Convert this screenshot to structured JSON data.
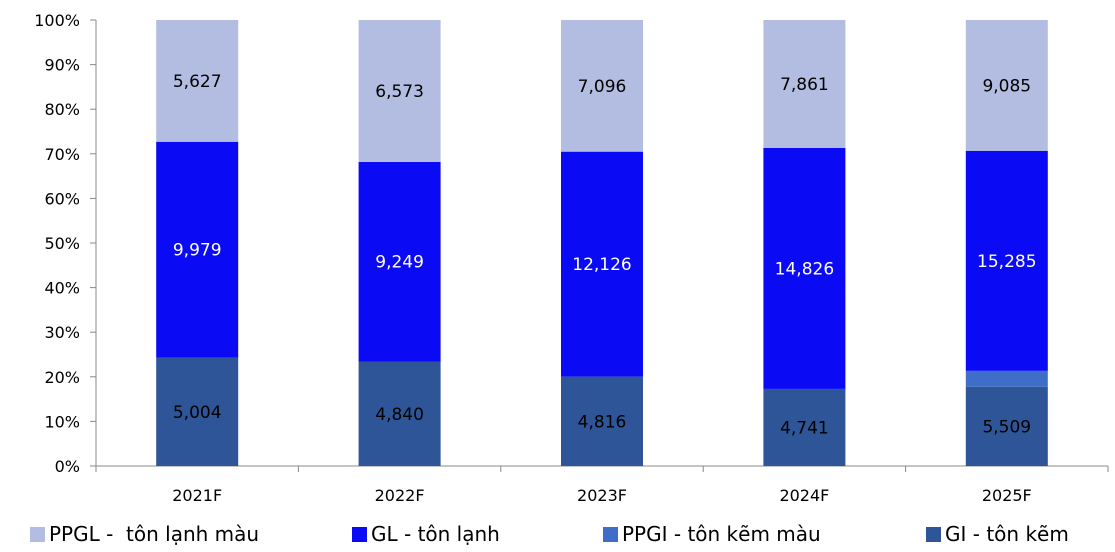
{
  "chart_data": {
    "type": "bar",
    "stacked": "percent",
    "categories": [
      "2021F",
      "2022F",
      "2023F",
      "2024F",
      "2025F"
    ],
    "series": [
      {
        "name": "GI - tôn kẽm",
        "values": [
          5004,
          4840,
          4816,
          4741,
          5509
        ],
        "labels": [
          "5,004",
          "4,840",
          "4,816",
          "4,741",
          "5,509"
        ],
        "color": "#2e5597",
        "label_color": "#000000"
      },
      {
        "name": "PPGI - tôn kẽm màu",
        "values": [
          0,
          0,
          0,
          0,
          1100
        ],
        "labels": [
          "",
          "",
          "",
          "",
          ""
        ],
        "color": "#3e6ec7",
        "label_color": "#000000"
      },
      {
        "name": "GL - tôn lạnh",
        "values": [
          9979,
          9249,
          12126,
          14826,
          15285
        ],
        "labels": [
          "9,979",
          "9,249",
          "12,126",
          "14,826",
          "15,285"
        ],
        "color": "#0a0af5",
        "label_color": "#ffffff"
      },
      {
        "name": "PPGL -  tôn lạnh màu",
        "values": [
          5627,
          6573,
          7096,
          7861,
          9085
        ],
        "labels": [
          "5,627",
          "6,573",
          "7,096",
          "7,861",
          "9,085"
        ],
        "color": "#b3bde1",
        "label_color": "#000000"
      }
    ],
    "yticks": [
      "0%",
      "10%",
      "20%",
      "30%",
      "40%",
      "50%",
      "60%",
      "70%",
      "80%",
      "90%",
      "100%"
    ],
    "ylim": [
      0,
      100
    ],
    "grid": false,
    "legend_position": "bottom",
    "legend_order": [
      "PPGL -  tôn lạnh màu",
      "GL - tôn lạnh",
      "PPGI - tôn kẽm màu",
      "GI - tôn kẽm"
    ]
  }
}
